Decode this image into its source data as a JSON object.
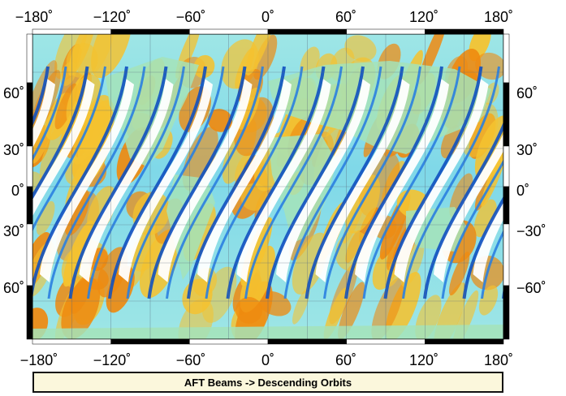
{
  "map": {
    "lon_ticks": [
      "−180˚",
      "−120˚",
      "−60˚",
      "0˚",
      "60˚",
      "120˚",
      "180˚"
    ],
    "lat_left_ticks": [
      "60˚",
      "30˚",
      "0˚",
      "30˚",
      "60˚"
    ],
    "lat_right_ticks": [
      "60˚",
      "30˚",
      "0˚",
      "−30˚",
      "−60˚"
    ],
    "colors": {
      "ocean_high": "#ee8a10",
      "ocean_mid": "#f4c230",
      "ocean_low": "#8fe0df",
      "swath": "#2a7fe0",
      "swath_dark": "#1050c0",
      "gap": "#ffffff",
      "land": "#9fe0b5",
      "frame": "#000000"
    }
  },
  "caption": "AFT Beams -> Descending Orbits"
}
